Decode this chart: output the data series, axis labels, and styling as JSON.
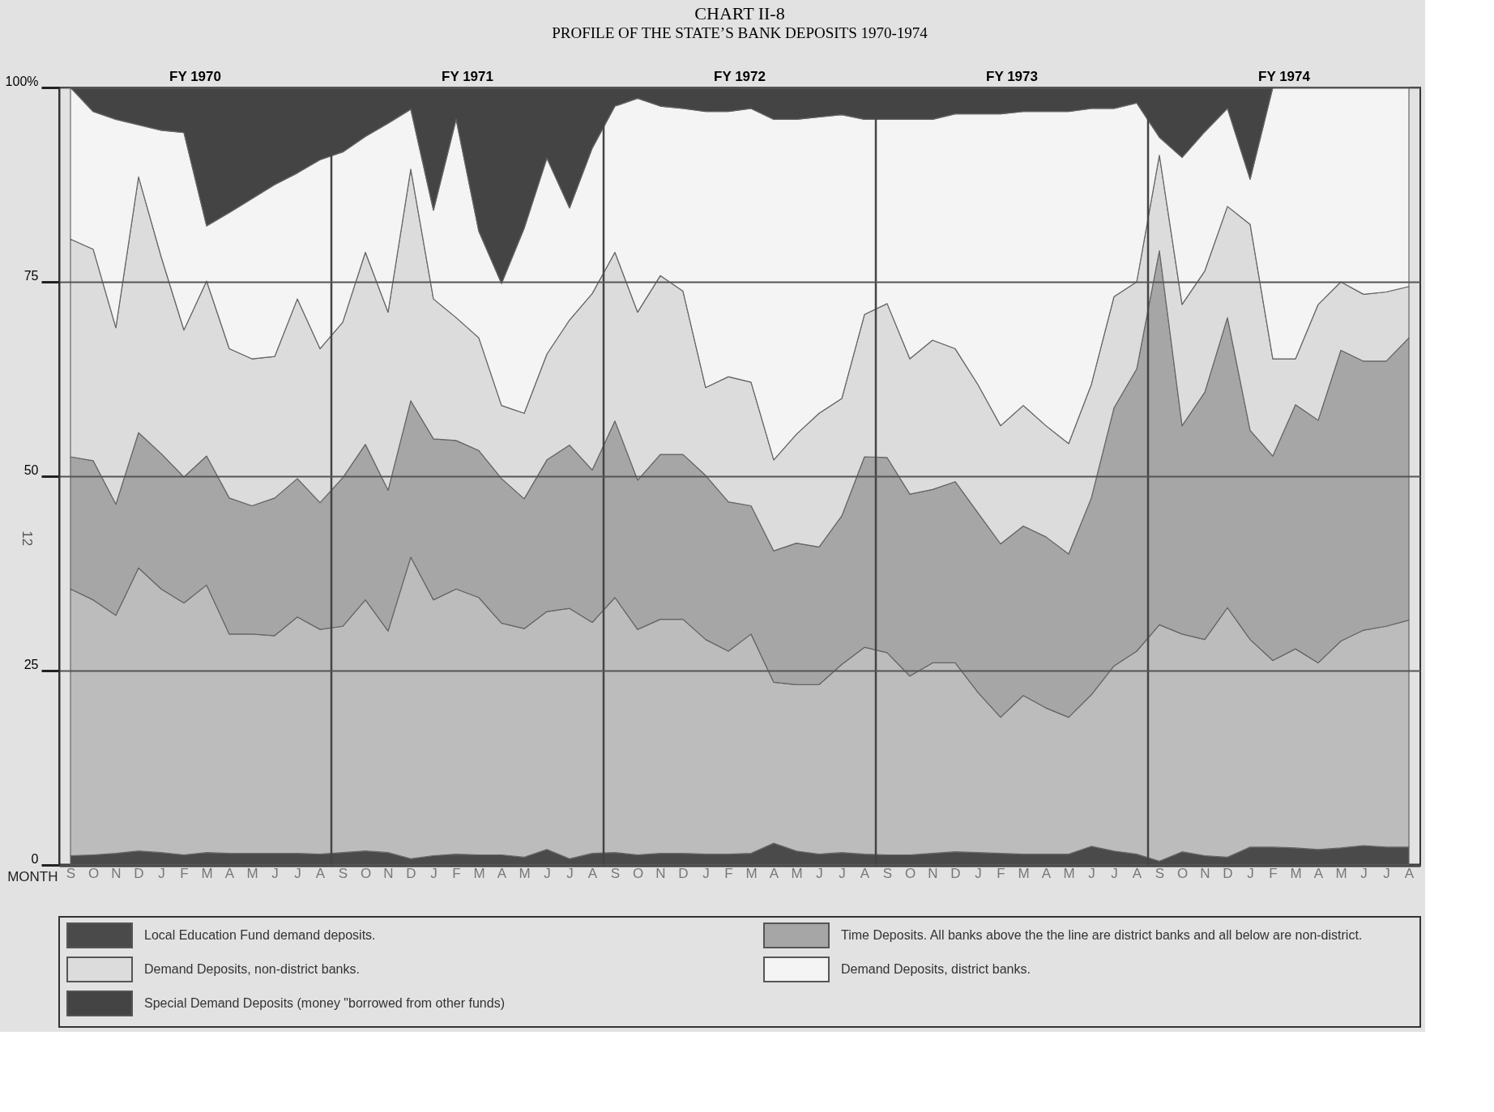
{
  "chart_data": {
    "type": "area",
    "stacked": true,
    "title": "CHART II-8",
    "subtitle": "PROFILE OF THE STATE’S BANK DEPOSITS 1970-1974",
    "xlabel": "MONTH",
    "categories": [
      "S",
      "O",
      "N",
      "D",
      "J",
      "F",
      "M",
      "A",
      "M",
      "J",
      "J",
      "A",
      "S",
      "O",
      "N",
      "D",
      "J",
      "F",
      "M",
      "A",
      "M",
      "J",
      "J",
      "A",
      "S",
      "O",
      "N",
      "D",
      "J",
      "F",
      "M",
      "A",
      "M",
      "J",
      "J",
      "A",
      "S",
      "O",
      "N",
      "D",
      "J",
      "F",
      "M",
      "A",
      "M",
      "J",
      "J",
      "A",
      "S",
      "O",
      "N",
      "D",
      "J",
      "F",
      "M",
      "A",
      "M",
      "J",
      "J",
      "A"
    ],
    "ylim": [
      0,
      100
    ],
    "yticks": [
      0,
      25,
      50,
      75,
      {
        "value": 100,
        "label": "100%"
      }
    ],
    "grid": "y",
    "legend": "bottom",
    "annotations": [
      "FY 1970",
      "FY 1971",
      "FY 1972",
      "FY 1973",
      "FY 1974",
      "12"
    ],
    "series": [
      {
        "name": "Local Education Fund demand deposits.",
        "color": "#4a4a4a",
        "values": [
          1.2,
          1.3,
          1.5,
          1.8,
          1.6,
          1.3,
          1.6,
          1.5,
          1.5,
          1.5,
          1.5,
          1.4,
          1.6,
          1.8,
          1.6,
          0.8,
          1.2,
          1.4,
          1.3,
          1.3,
          1.0,
          2.0,
          0.8,
          1.5,
          1.6,
          1.3,
          1.5,
          1.5,
          1.4,
          1.4,
          1.5,
          2.8,
          1.8,
          1.4,
          1.6,
          1.4,
          1.3,
          1.3,
          1.5,
          1.7,
          1.6,
          1.5,
          1.4,
          1.4,
          1.4,
          2.4,
          1.8,
          1.4,
          0.5,
          1.7,
          1.2,
          1.0,
          2.3,
          2.3,
          2.2,
          2.0,
          2.2,
          2.5,
          2.3,
          2.3
        ]
      },
      {
        "color": "#bcbcbc",
        "values": [
          34.3,
          32.8,
          30.6,
          36.4,
          33.9,
          32.4,
          34.4,
          28.2,
          28.2,
          28.0,
          30.4,
          28.9,
          29.1,
          32.3,
          28.5,
          38.8,
          32.9,
          34.1,
          33.1,
          29.8,
          29.4,
          30.6,
          32.2,
          29.7,
          32.8,
          29.0,
          30.1,
          30.1,
          27.6,
          26.1,
          28.2,
          20.7,
          21.4,
          21.8,
          24.2,
          26.6,
          26.0,
          23.0,
          24.5,
          24.3,
          20.6,
          17.5,
          20.4,
          18.8,
          17.6,
          19.5,
          23.8,
          26.1,
          30.4,
          28.0,
          27.8,
          32.1,
          26.7,
          24.0,
          25.6,
          24.0,
          26.6,
          27.7,
          28.4,
          29.2
        ]
      },
      {
        "name": "Time Deposits. All banks above the the line are district banks and all below are non-district.",
        "color": "#a6a6a6",
        "values": [
          17.0,
          17.9,
          14.3,
          17.4,
          17.4,
          16.2,
          16.6,
          17.5,
          16.5,
          17.7,
          17.8,
          16.3,
          19.1,
          20.0,
          18.1,
          20.1,
          20.7,
          19.1,
          18.9,
          18.6,
          16.7,
          19.5,
          21.0,
          19.6,
          22.7,
          19.2,
          21.2,
          21.2,
          21.1,
          19.2,
          16.5,
          16.9,
          18.2,
          17.7,
          19.1,
          24.5,
          25.1,
          23.4,
          22.3,
          23.3,
          23.1,
          22.3,
          21.8,
          22.0,
          21.0,
          25.3,
          33.2,
          36.3,
          48.1,
          26.8,
          31.8,
          37.3,
          26.9,
          26.3,
          31.4,
          31.2,
          37.4,
          34.6,
          34.1,
          36.3
        ]
      },
      {
        "name": "Demand Deposits, non-district banks.",
        "color": "#dcdcdc",
        "values": [
          28.0,
          27.2,
          22.7,
          32.9,
          25.3,
          18.9,
          22.5,
          19.2,
          18.9,
          18.2,
          23.1,
          19.8,
          20.0,
          24.7,
          22.9,
          29.8,
          18.0,
          15.8,
          14.5,
          9.4,
          11.0,
          13.6,
          16.1,
          22.7,
          21.7,
          21.6,
          23.0,
          21.0,
          11.3,
          16.1,
          15.9,
          11.7,
          14.0,
          17.2,
          15.1,
          18.3,
          19.8,
          17.4,
          19.2,
          17.1,
          16.5,
          15.2,
          15.5,
          14.3,
          14.2,
          14.6,
          14.3,
          11.2,
          12.3,
          15.6,
          15.6,
          14.3,
          26.5,
          12.5,
          5.9,
          14.9,
          8.8,
          8.6,
          8.9,
          6.6
        ]
      },
      {
        "name": "Demand Deposits, district banks.",
        "color": "#f4f4f4",
        "values": [
          19.5,
          17.7,
          26.8,
          6.7,
          16.3,
          25.4,
          7.1,
          17.5,
          20.6,
          22.1,
          16.2,
          24.3,
          21.9,
          14.9,
          24.3,
          7.7,
          11.4,
          25.5,
          13.7,
          15.7,
          23.8,
          25.2,
          14.4,
          18.7,
          18.8,
          27.5,
          21.8,
          23.5,
          35.5,
          34.1,
          35.2,
          43.8,
          40.5,
          38.1,
          36.5,
          25.1,
          23.7,
          30.8,
          28.4,
          30.2,
          34.8,
          40.1,
          37.8,
          40.4,
          42.7,
          35.5,
          24.2,
          23.0,
          2.3,
          18.9,
          17.9,
          12.6,
          5.8,
          34.9,
          34.9,
          27.9,
          25.0,
          26.6,
          26.3,
          25.6
        ]
      },
      {
        "name": "Special Demand Deposits (money \"borrowed from other funds)",
        "color": "#444444",
        "values": [
          0,
          3.1,
          4.1,
          4.8,
          5.5,
          5.8,
          17.8,
          16.1,
          14.3,
          12.5,
          11.0,
          9.3,
          8.3,
          6.3,
          4.6,
          2.8,
          15.8,
          4.1,
          18.5,
          25.2,
          18.1,
          9.1,
          15.5,
          7.8,
          2.4,
          1.4,
          2.4,
          2.7,
          3.1,
          3.1,
          2.7,
          4.1,
          4.1,
          3.8,
          3.5,
          4.1,
          4.1,
          4.1,
          4.1,
          3.4,
          3.4,
          3.4,
          3.1,
          3.1,
          3.1,
          2.7,
          2.7,
          2.0,
          6.4,
          9.0,
          5.7,
          2.7,
          11.8,
          0,
          0,
          0,
          0,
          0,
          0,
          0
        ]
      }
    ]
  }
}
